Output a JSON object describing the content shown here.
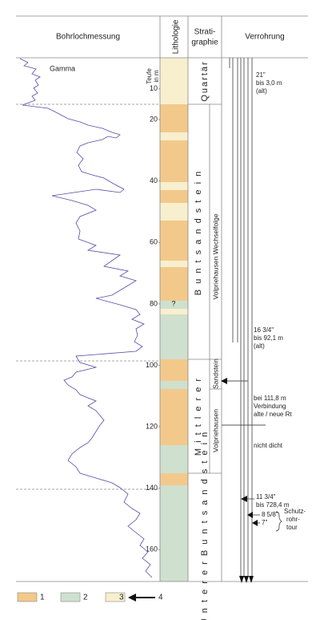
{
  "header": {
    "measurement": "Bohrlochmessung",
    "lithology": "Lithologie",
    "stratigraphy": [
      "Strati-",
      "graphie"
    ],
    "casing": "Verrohrung"
  },
  "gamma_label": "Gamma",
  "depth_label": [
    "Teufe",
    "in m"
  ],
  "depth_ticks": [
    10,
    20,
    40,
    60,
    80,
    100,
    120,
    140,
    160
  ],
  "question_mark": "?",
  "stratigraphy": {
    "quaternary": "Quartär",
    "buntsandstein": "B u n t s a n d s t e i n",
    "wechselfolge": "Volpriehausen Wechselfolge",
    "mittlerer": "M i t t l e r e r",
    "sandstein": "Sandstein",
    "volpriehausen": "Volpriehausen",
    "unterer": "U n t e r e r   B u n t s a n d s t e i n"
  },
  "casing": {
    "c21": [
      "21\"",
      "bis 3,0 m",
      "(alt)"
    ],
    "c16": [
      "16 3/4\"",
      "bis 92,1 m",
      "(alt)"
    ],
    "joint": [
      "bei 111,8 m",
      "Verbindung",
      "alte / neue Rt"
    ],
    "leak": "nicht dicht",
    "c11": [
      "11 3/4\"",
      "bis 728,4 m"
    ],
    "c8": "8 5/8\"",
    "c7": "7\"",
    "protective": [
      "Schutz-",
      "rohr-",
      "tour"
    ]
  },
  "legend": [
    "1",
    "2",
    "3",
    "4"
  ]
}
